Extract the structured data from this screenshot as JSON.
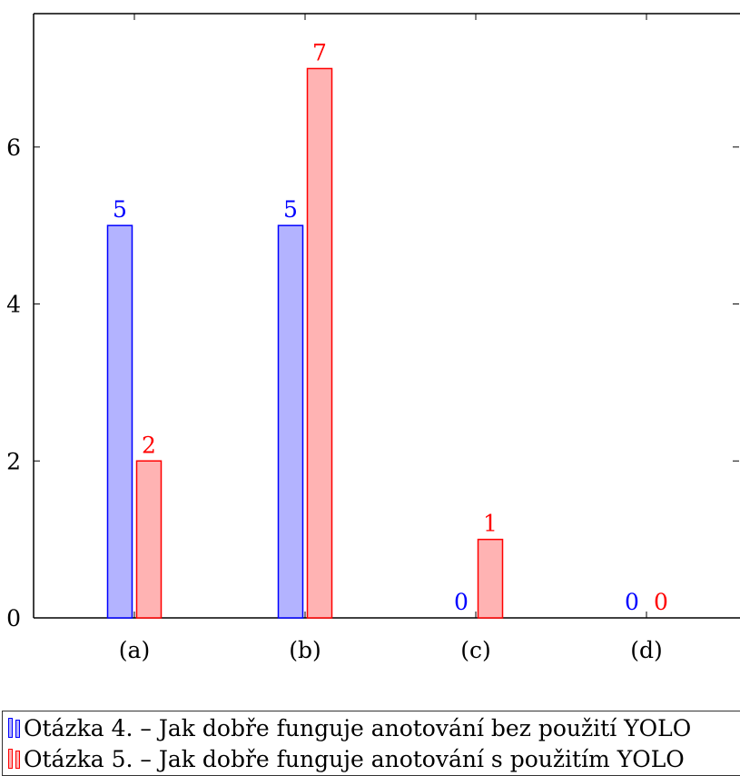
{
  "chart_data": {
    "type": "bar",
    "categories": [
      "(a)",
      "(b)",
      "(c)",
      "(d)"
    ],
    "series": [
      {
        "name": "Otázka 4. – Jak dobře funguje anotování bez použití YOLO",
        "values": [
          5,
          5,
          0,
          0
        ],
        "color": "#0000ff",
        "fill": "#b3b3ff"
      },
      {
        "name": "Otázka 5. – Jak dobře funguje anotování s použitím YOLO",
        "values": [
          2,
          7,
          1,
          0
        ],
        "color": "#ff0000",
        "fill": "#ffb3b3"
      }
    ],
    "yticks": [
      0,
      2,
      4,
      6
    ],
    "ylim": [
      0,
      7.7
    ],
    "grid": false,
    "data_labels": true,
    "legend_position": "bottom"
  }
}
